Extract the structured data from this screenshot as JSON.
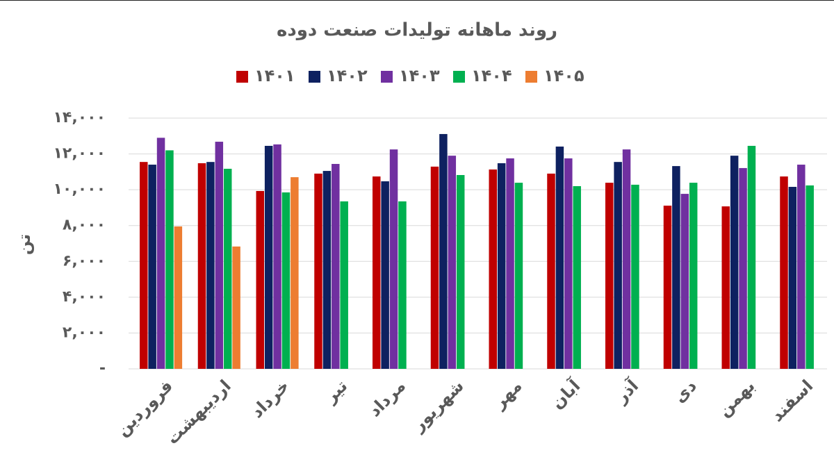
{
  "chart_data": {
    "type": "bar",
    "title": "روند ماهانه تولیدات صنعت دوده",
    "y_label": "تن",
    "categories": [
      "فروردین",
      "اردیبهشت",
      "خرداد",
      "تیر",
      "مرداد",
      "شهریور",
      "مهر",
      "آبان",
      "آذر",
      "دی",
      "بهمن",
      "اسفند"
    ],
    "series": [
      {
        "name": "۱۴۰۱",
        "color": "#c00000",
        "values": [
          11550,
          11480,
          9930,
          10900,
          10740,
          11290,
          11130,
          10900,
          10390,
          9110,
          9070,
          10740
        ]
      },
      {
        "name": "۱۴۰۲",
        "color": "#0e2160",
        "values": [
          11400,
          11550,
          12450,
          11050,
          10470,
          13110,
          11480,
          12410,
          11550,
          11320,
          11900,
          10160
        ]
      },
      {
        "name": "۱۴۰۳",
        "color": "#7030a0",
        "values": [
          12900,
          12680,
          12530,
          11440,
          12250,
          11900,
          11750,
          11750,
          12250,
          9770,
          11210,
          11400
        ]
      },
      {
        "name": "۱۴۰۴",
        "color": "#00b050",
        "values": [
          12200,
          11170,
          9850,
          9350,
          9350,
          10820,
          10390,
          10200,
          10280,
          10390,
          12450,
          10240
        ]
      },
      {
        "name": "۱۴۰۵",
        "color": "#ed7d31",
        "values": [
          7950,
          6830,
          10700,
          null,
          null,
          null,
          null,
          null,
          null,
          null,
          null,
          null
        ]
      }
    ],
    "ylim": [
      0,
      14000
    ],
    "yticks": [
      {
        "value": 0,
        "label": "-"
      },
      {
        "value": 2000,
        "label": "۲,۰۰۰"
      },
      {
        "value": 4000,
        "label": "۴,۰۰۰"
      },
      {
        "value": 6000,
        "label": "۶,۰۰۰"
      },
      {
        "value": 8000,
        "label": "۸,۰۰۰"
      },
      {
        "value": 10000,
        "label": "۱۰,۰۰۰"
      },
      {
        "value": 12000,
        "label": "۱۲,۰۰۰"
      },
      {
        "value": 14000,
        "label": "۱۴,۰۰۰"
      }
    ],
    "grid": true,
    "legend": "top"
  }
}
